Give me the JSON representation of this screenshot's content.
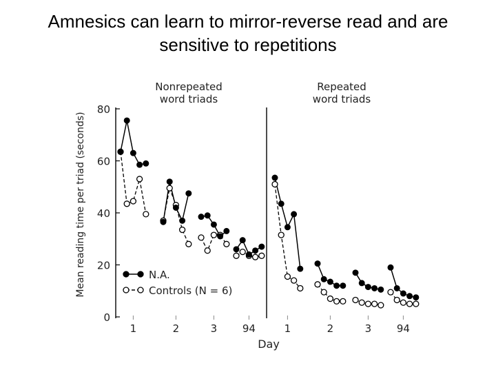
{
  "slide": {
    "title_line1": "Amnesics can learn to mirror-reverse read and are",
    "title_line2": "sensitive to repetitions"
  },
  "chart_data": {
    "type": "line",
    "ylabel": "Mean reading time per triad (seconds)",
    "xlabel": "Day",
    "ylim": [
      0,
      80
    ],
    "yticks": [
      0,
      20,
      40,
      60,
      80
    ],
    "panels": [
      {
        "title_line1": "Nonrepeated",
        "title_line2": "word triads",
        "days": [
          {
            "label": "1",
            "na": [
              63.5,
              75.5,
              63,
              58.5,
              59
            ],
            "controls": [
              63.5,
              43.5,
              44.5,
              53,
              39.5
            ]
          },
          {
            "label": "2",
            "na": [
              36.5,
              52,
              42,
              37,
              47.5
            ],
            "controls": [
              37,
              49.5,
              43,
              33.5,
              28
            ]
          },
          {
            "label": "3",
            "na": [
              38.5,
              39,
              35.5,
              31,
              33
            ],
            "controls": [
              30.5,
              25.5,
              31.5,
              31.5,
              28
            ]
          },
          {
            "label": "94",
            "na": [
              26,
              29.5,
              24,
              25.5,
              27
            ],
            "controls": [
              23.5,
              25,
              23.5,
              23,
              23.5
            ]
          }
        ]
      },
      {
        "title_line1": "Repeated",
        "title_line2": "word triads",
        "days": [
          {
            "label": "1",
            "na": [
              53.5,
              43.5,
              34.5,
              39.5,
              18.5
            ],
            "controls": [
              51,
              31.5,
              15.5,
              14,
              11
            ]
          },
          {
            "label": "2",
            "na": [
              20.5,
              14.5,
              13.5,
              12,
              12
            ],
            "controls": [
              12.5,
              9.5,
              7,
              6,
              6
            ]
          },
          {
            "label": "3",
            "na": [
              17,
              13,
              11.5,
              11,
              10.5
            ],
            "controls": [
              6.5,
              5.5,
              5,
              5,
              4.5
            ]
          },
          {
            "label": "94",
            "na": [
              19,
              11,
              9,
              8,
              7.5
            ],
            "controls": [
              9.5,
              6.5,
              5.5,
              5,
              5
            ]
          }
        ]
      }
    ],
    "legend": [
      {
        "name": "N.A.",
        "marker": "filled-circle",
        "line": "solid"
      },
      {
        "name": "Controls (N = 6)",
        "marker": "open-circle",
        "line": "dashed"
      }
    ]
  }
}
